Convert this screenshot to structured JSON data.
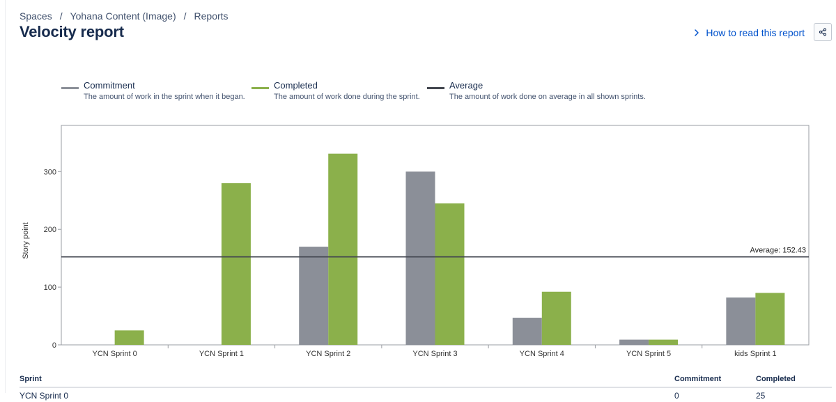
{
  "breadcrumb": [
    "Spaces",
    "Yohana Content (Image)",
    "Reports"
  ],
  "title": "Velocity report",
  "help_link": "How to read this report",
  "legend": [
    {
      "name": "Commitment",
      "desc": "The amount of work in the sprint when it began.",
      "color": "#8b8f98"
    },
    {
      "name": "Completed",
      "desc": "The amount of work done during the sprint.",
      "color": "#8bb04b"
    },
    {
      "name": "Average",
      "desc": "The amount of work done on average in all shown sprints.",
      "color": "#42464f"
    }
  ],
  "chart_data": {
    "type": "bar",
    "categories": [
      "YCN Sprint 0",
      "YCN Sprint 1",
      "YCN Sprint 2",
      "YCN Sprint 3",
      "YCN Sprint 4",
      "YCN Sprint 5",
      "kids Sprint 1"
    ],
    "series": [
      {
        "name": "Commitment",
        "values": [
          0,
          0,
          170,
          300,
          47,
          9,
          82
        ],
        "color": "#8b8f98"
      },
      {
        "name": "Completed",
        "values": [
          25,
          280,
          331,
          245,
          92,
          9,
          90
        ],
        "color": "#8bb04b"
      }
    ],
    "average": 152.43,
    "average_label": "Average: 152.43",
    "ylabel": "Story point",
    "yticks": [
      0,
      100,
      200,
      300
    ],
    "ylim": [
      0,
      380
    ]
  },
  "table": {
    "headers": {
      "sprint": "Sprint",
      "commitment": "Commitment",
      "completed": "Completed"
    },
    "rows": [
      {
        "sprint": "YCN Sprint 0",
        "commitment": "0",
        "completed": "25"
      }
    ]
  }
}
